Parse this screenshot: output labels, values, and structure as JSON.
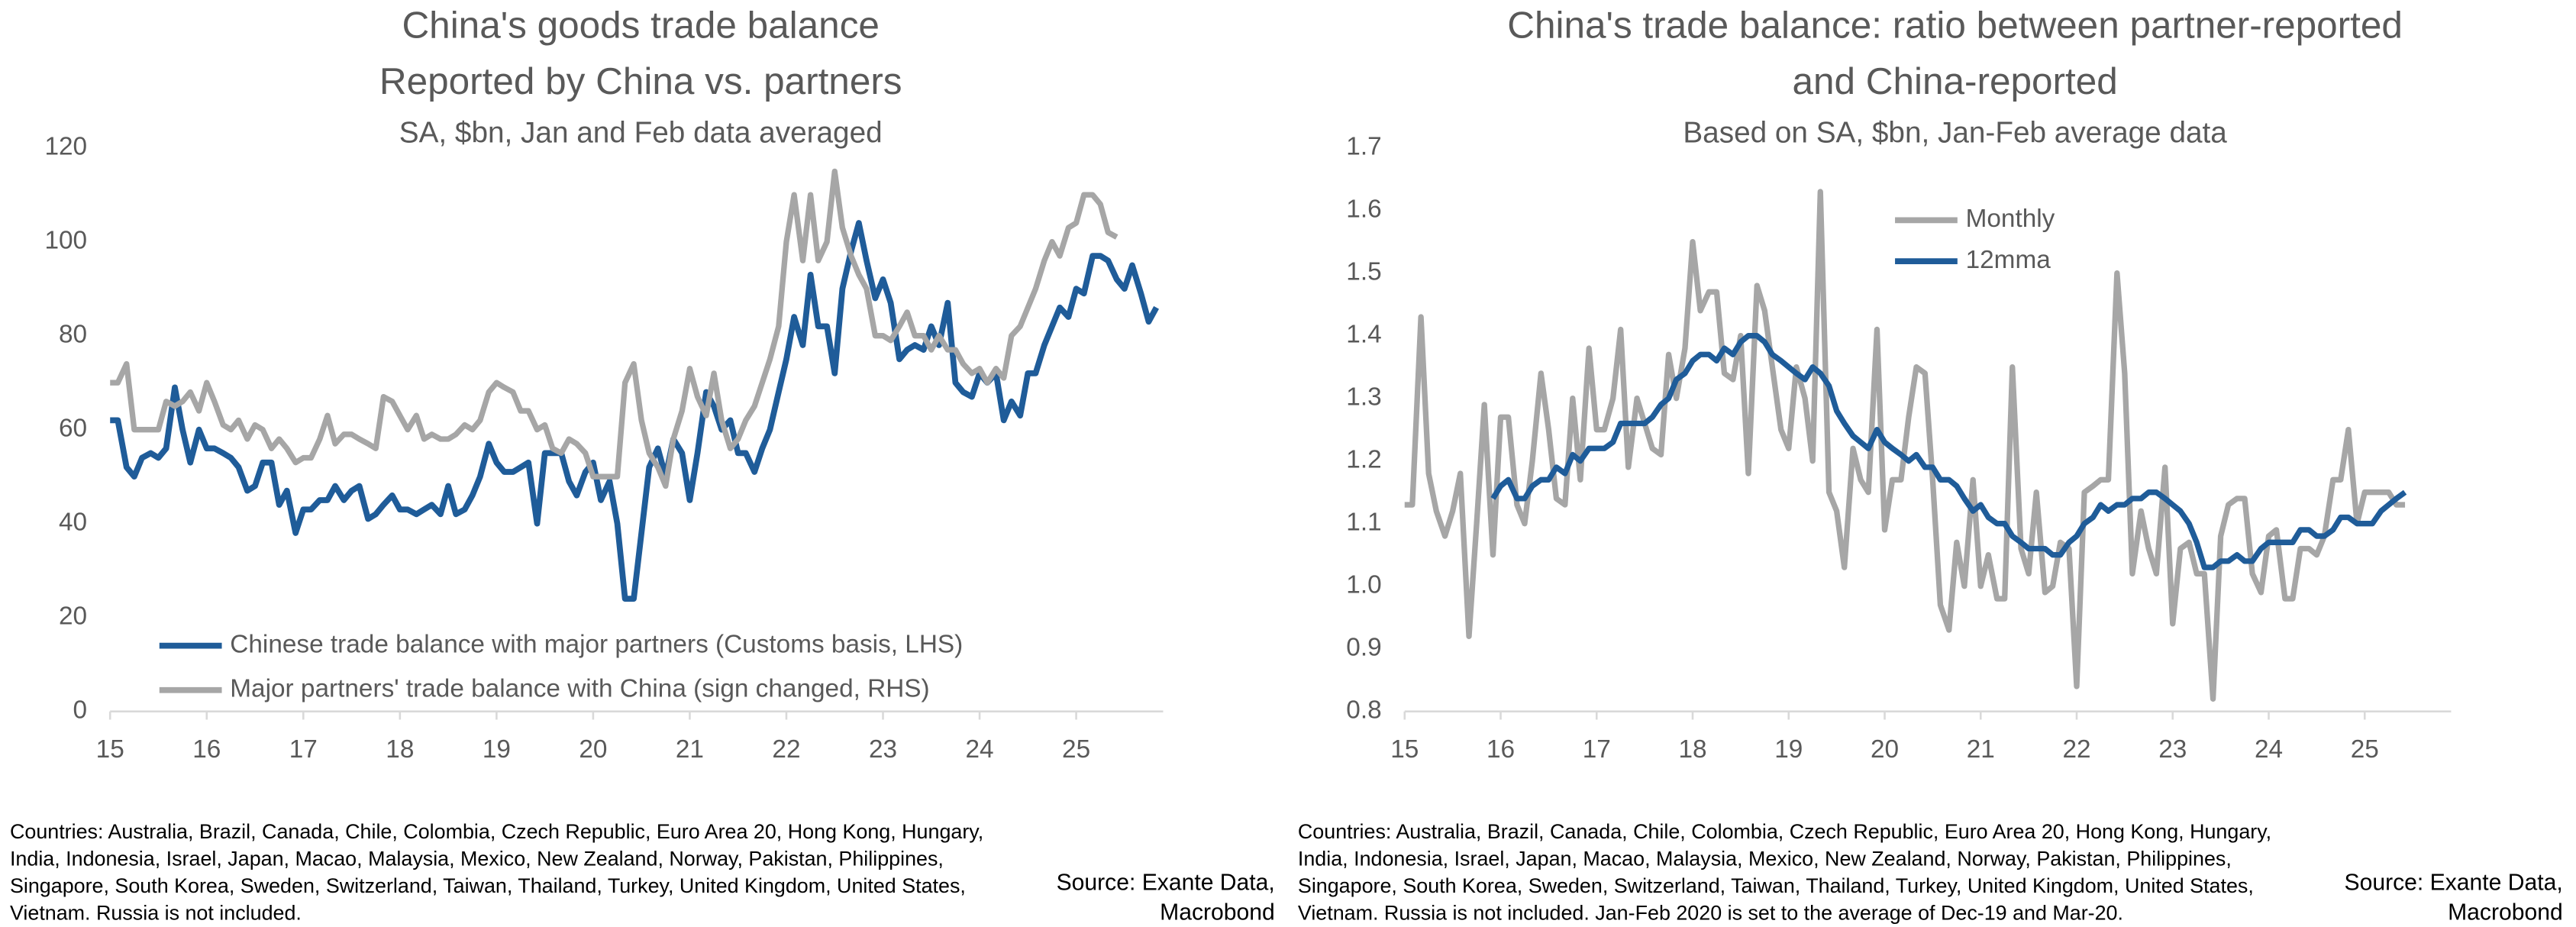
{
  "chart_data": [
    {
      "type": "line",
      "title": [
        "China's goods trade balance",
        "Reported by China vs. partners"
      ],
      "subtitle": "SA, $bn, Jan and Feb data averaged",
      "xlim": [
        15,
        25.9
      ],
      "xticks": [
        15,
        16,
        17,
        18,
        19,
        20,
        21,
        22,
        23,
        24,
        25
      ],
      "ylim": [
        0,
        120
      ],
      "yticks": [
        0,
        20,
        40,
        60,
        80,
        100,
        120
      ],
      "legend": "lower left",
      "x": [
        15.0,
        15.08,
        15.17,
        15.25,
        15.33,
        15.42,
        15.5,
        15.58,
        15.67,
        15.75,
        15.83,
        15.92,
        16.0,
        16.08,
        16.17,
        16.25,
        16.33,
        16.42,
        16.5,
        16.58,
        16.67,
        16.75,
        16.83,
        16.92,
        17.0,
        17.08,
        17.17,
        17.25,
        17.33,
        17.42,
        17.5,
        17.58,
        17.67,
        17.75,
        17.83,
        17.92,
        18.0,
        18.08,
        18.17,
        18.25,
        18.33,
        18.42,
        18.5,
        18.58,
        18.67,
        18.75,
        18.83,
        18.92,
        19.0,
        19.08,
        19.17,
        19.25,
        19.33,
        19.42,
        19.5,
        19.58,
        19.67,
        19.75,
        19.83,
        19.92,
        20.0,
        20.08,
        20.17,
        20.25,
        20.33,
        20.42,
        20.5,
        20.58,
        20.67,
        20.75,
        20.83,
        20.92,
        21.0,
        21.08,
        21.17,
        21.25,
        21.33,
        21.42,
        21.5,
        21.58,
        21.67,
        21.75,
        21.83,
        21.92,
        22.0,
        22.08,
        22.17,
        22.25,
        22.33,
        22.42,
        22.5,
        22.58,
        22.67,
        22.75,
        22.83,
        22.92,
        23.0,
        23.08,
        23.17,
        23.25,
        23.33,
        23.42,
        23.5,
        23.58,
        23.67,
        23.75,
        23.83,
        23.92,
        24.0,
        24.08,
        24.17,
        24.25,
        24.33,
        24.42,
        24.5,
        24.58,
        24.67,
        24.75,
        24.83,
        24.92,
        25.0,
        25.08,
        25.17,
        25.25,
        25.33,
        25.42,
        25.5,
        25.58,
        25.67,
        25.75,
        25.83
      ],
      "series": [
        {
          "name": "Chinese trade balance with major partners (Customs basis, LHS)",
          "color": "#1f5c99",
          "values": [
            62,
            62,
            52,
            50,
            54,
            55,
            54,
            56,
            69,
            60,
            53,
            60,
            56,
            56,
            55,
            54,
            52,
            47,
            48,
            53,
            53,
            44,
            47,
            38,
            43,
            43,
            45,
            45,
            48,
            45,
            47,
            48,
            41,
            42,
            44,
            46,
            43,
            43,
            42,
            43,
            44,
            42,
            48,
            42,
            43,
            46,
            50,
            57,
            53,
            51,
            51,
            52,
            53,
            40,
            55,
            55,
            55,
            49,
            46,
            51,
            53,
            45,
            49,
            40,
            24,
            24,
            38,
            52,
            56,
            50,
            58,
            55,
            45,
            55,
            68,
            65,
            60,
            62,
            55,
            55,
            51,
            56,
            60,
            68,
            75,
            84,
            78,
            93,
            82,
            82,
            72,
            90,
            98,
            104,
            96,
            88,
            92,
            87,
            75,
            77,
            78,
            77,
            82,
            78,
            87,
            70,
            68,
            67,
            72,
            70,
            72,
            62,
            66,
            63,
            72,
            72,
            78,
            82,
            86,
            84,
            90,
            89,
            97,
            97,
            96,
            92,
            90,
            95,
            89,
            83,
            86
          ]
        },
        {
          "name": "Major partners' trade balance with China (sign changed, RHS)",
          "color": "#a6a6a6",
          "values": [
            70,
            70,
            74,
            60,
            60,
            60,
            60,
            66,
            65,
            66,
            68,
            64,
            70,
            66,
            61,
            60,
            62,
            58,
            61,
            60,
            56,
            58,
            56,
            53,
            54,
            54,
            58,
            63,
            57,
            59,
            59,
            58,
            57,
            56,
            67,
            66,
            63,
            60,
            63,
            58,
            59,
            58,
            58,
            59,
            61,
            60,
            62,
            68,
            70,
            69,
            68,
            64,
            64,
            60,
            61,
            56,
            55,
            58,
            57,
            55,
            50,
            50,
            50,
            50,
            70,
            74,
            62,
            55,
            52,
            48,
            58,
            64,
            73,
            67,
            63,
            72,
            62,
            56,
            58,
            62,
            65,
            70,
            75,
            82,
            100,
            110,
            96,
            110,
            96,
            100,
            115,
            103,
            97,
            93,
            90,
            80,
            80,
            79,
            82,
            85,
            80,
            80,
            77,
            80,
            77,
            77,
            74,
            72,
            73,
            70,
            73,
            71,
            80,
            82,
            86,
            90,
            96,
            100,
            97,
            103,
            104,
            110,
            110,
            108,
            102,
            101,
            null,
            null,
            null,
            null,
            null
          ]
        }
      ],
      "note": [
        "Countries: Australia, Brazil, Canada, Chile, Colombia, Czech Republic, Euro Area 20, Hong Kong, Hungary,",
        "India, Indonesia, Israel, Japan, Macao, Malaysia, Mexico, New Zealand, Norway, Pakistan, Philippines,",
        "Singapore, South Korea, Sweden, Switzerland, Taiwan, Thailand, Turkey, United Kingdom, United States,",
        "Vietnam. Russia is not included."
      ],
      "source": [
        "Source: Exante Data,",
        "Macrobond"
      ]
    },
    {
      "type": "line",
      "title": [
        "China's trade balance: ratio between partner-reported",
        "and China-reported"
      ],
      "subtitle": "Based on SA, $bn, Jan-Feb average data",
      "xlim": [
        15,
        25.9
      ],
      "xticks": [
        15,
        16,
        17,
        18,
        19,
        20,
        21,
        22,
        23,
        24,
        25
      ],
      "ylim": [
        0.8,
        1.7
      ],
      "yticks": [
        0.8,
        0.9,
        {
          "value": 1,
          "label": "1.0"
        },
        1.1,
        1.2,
        1.3,
        1.4,
        1.5,
        1.6,
        1.7
      ],
      "legend": "upper center",
      "x": [
        15.0,
        15.08,
        15.17,
        15.25,
        15.33,
        15.42,
        15.5,
        15.58,
        15.67,
        15.75,
        15.83,
        15.92,
        16.0,
        16.08,
        16.17,
        16.25,
        16.33,
        16.42,
        16.5,
        16.58,
        16.67,
        16.75,
        16.83,
        16.92,
        17.0,
        17.08,
        17.17,
        17.25,
        17.33,
        17.42,
        17.5,
        17.58,
        17.67,
        17.75,
        17.83,
        17.92,
        18.0,
        18.08,
        18.17,
        18.25,
        18.33,
        18.42,
        18.5,
        18.58,
        18.67,
        18.75,
        18.83,
        18.92,
        19.0,
        19.08,
        19.17,
        19.25,
        19.33,
        19.42,
        19.5,
        19.58,
        19.67,
        19.75,
        19.83,
        19.92,
        20.0,
        20.08,
        20.17,
        20.25,
        20.33,
        20.42,
        20.5,
        20.58,
        20.67,
        20.75,
        20.83,
        20.92,
        21.0,
        21.08,
        21.17,
        21.25,
        21.33,
        21.42,
        21.5,
        21.58,
        21.67,
        21.75,
        21.83,
        21.92,
        22.0,
        22.08,
        22.17,
        22.25,
        22.33,
        22.42,
        22.5,
        22.58,
        22.67,
        22.75,
        22.83,
        22.92,
        23.0,
        23.08,
        23.17,
        23.25,
        23.33,
        23.42,
        23.5,
        23.58,
        23.67,
        23.75,
        23.83,
        23.92,
        24.0,
        24.08,
        24.17,
        24.25,
        24.33,
        24.42,
        24.5,
        24.58,
        24.67,
        24.75,
        24.83,
        24.92,
        25.0,
        25.08,
        25.17,
        25.25,
        25.33,
        25.42
      ],
      "series": [
        {
          "name": "Monthly",
          "color": "#a6a6a6",
          "values": [
            1.13,
            1.13,
            1.43,
            1.18,
            1.12,
            1.08,
            1.12,
            1.18,
            0.92,
            1.1,
            1.29,
            1.05,
            1.27,
            1.27,
            1.13,
            1.1,
            1.2,
            1.34,
            1.25,
            1.14,
            1.13,
            1.3,
            1.17,
            1.38,
            1.25,
            1.25,
            1.3,
            1.41,
            1.19,
            1.3,
            1.26,
            1.22,
            1.21,
            1.37,
            1.3,
            1.38,
            1.55,
            1.44,
            1.47,
            1.47,
            1.34,
            1.33,
            1.4,
            1.18,
            1.48,
            1.44,
            1.35,
            1.25,
            1.22,
            1.35,
            1.3,
            1.2,
            1.63,
            1.15,
            1.12,
            1.03,
            1.22,
            1.17,
            1.15,
            1.41,
            1.09,
            1.17,
            1.17,
            1.27,
            1.35,
            1.34,
            1.17,
            0.97,
            0.93,
            1.07,
            1.0,
            1.17,
            1.0,
            1.05,
            0.98,
            0.98,
            1.35,
            1.06,
            1.02,
            1.15,
            0.99,
            1.0,
            1.07,
            1.06,
            0.84,
            1.15,
            1.16,
            1.17,
            1.17,
            1.5,
            1.34,
            1.02,
            1.12,
            1.06,
            1.02,
            1.19,
            0.94,
            1.06,
            1.07,
            1.02,
            1.02,
            0.82,
            1.08,
            1.13,
            1.14,
            1.14,
            1.02,
            0.99,
            1.08,
            1.09,
            0.98,
            0.98,
            1.06,
            1.06,
            1.05,
            1.08,
            1.17,
            1.17,
            1.25,
            1.1,
            1.15,
            1.15,
            1.15,
            1.15,
            1.13,
            1.13
          ]
        },
        {
          "name": "12mma",
          "color": "#1f5c99",
          "values": [
            null,
            null,
            null,
            null,
            null,
            null,
            null,
            null,
            null,
            null,
            null,
            1.14,
            1.16,
            1.17,
            1.14,
            1.14,
            1.16,
            1.17,
            1.17,
            1.19,
            1.18,
            1.21,
            1.2,
            1.22,
            1.22,
            1.22,
            1.23,
            1.26,
            1.26,
            1.26,
            1.26,
            1.27,
            1.29,
            1.3,
            1.33,
            1.34,
            1.36,
            1.37,
            1.37,
            1.36,
            1.38,
            1.37,
            1.39,
            1.4,
            1.4,
            1.39,
            1.37,
            1.36,
            1.35,
            1.34,
            1.33,
            1.35,
            1.34,
            1.32,
            1.28,
            1.26,
            1.24,
            1.23,
            1.22,
            1.25,
            1.23,
            1.22,
            1.21,
            1.2,
            1.21,
            1.19,
            1.19,
            1.17,
            1.17,
            1.16,
            1.14,
            1.12,
            1.13,
            1.11,
            1.1,
            1.1,
            1.08,
            1.07,
            1.06,
            1.06,
            1.06,
            1.05,
            1.05,
            1.07,
            1.08,
            1.1,
            1.11,
            1.13,
            1.12,
            1.13,
            1.13,
            1.14,
            1.14,
            1.15,
            1.15,
            1.14,
            1.13,
            1.12,
            1.1,
            1.07,
            1.03,
            1.03,
            1.04,
            1.04,
            1.05,
            1.04,
            1.04,
            1.06,
            1.07,
            1.07,
            1.07,
            1.07,
            1.09,
            1.09,
            1.08,
            1.08,
            1.09,
            1.11,
            1.11,
            1.1,
            1.1,
            1.1,
            1.12,
            1.13,
            1.14,
            1.15
          ]
        }
      ],
      "note": [
        "Countries: Australia, Brazil, Canada, Chile, Colombia, Czech Republic, Euro Area 20, Hong Kong, Hungary,",
        "India, Indonesia, Israel, Japan, Macao, Malaysia, Mexico, New Zealand, Norway, Pakistan, Philippines,",
        "Singapore, South Korea, Sweden, Switzerland, Taiwan, Thailand, Turkey, United Kingdom, United States,",
        "Vietnam. Russia is not included. Jan-Feb 2020 is set to the average of Dec-19 and Mar-20."
      ],
      "source": [
        "Source: Exante Data,",
        "Macrobond"
      ]
    }
  ]
}
